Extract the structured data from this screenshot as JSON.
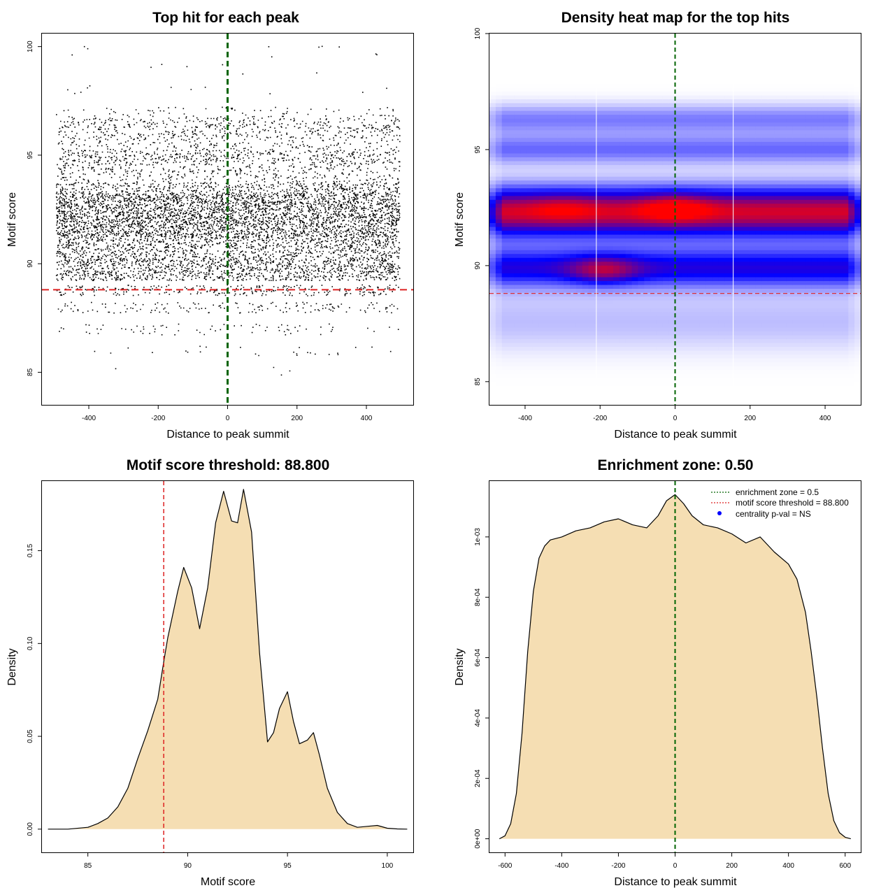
{
  "chart_data": [
    {
      "type": "scatter",
      "title": "Top hit for each peak",
      "xlabel": "Distance to peak summit",
      "ylabel": "Motif score",
      "xlim": [
        -535,
        535
      ],
      "ylim": [
        83.5,
        100.6
      ],
      "xticks": [
        -400,
        -200,
        0,
        200,
        400
      ],
      "xtick_labels": [
        "-400",
        "-200",
        "0",
        "200",
        "400"
      ],
      "yticks": [
        85,
        90,
        95,
        100
      ],
      "ytick_labels": [
        "85",
        "90",
        "95",
        "100"
      ],
      "hlines": [
        {
          "y": 88.8,
          "color": "#dd2222",
          "style": "dashed"
        }
      ],
      "vlines": [
        {
          "x": 0,
          "color": "#006400",
          "style": "dashed"
        }
      ],
      "point_density_by_score": [
        {
          "y": 85.0,
          "count": 4
        },
        {
          "y": 86.0,
          "count": 25
        },
        {
          "y": 87.0,
          "count": 70
        },
        {
          "y": 88.0,
          "count": 150
        },
        {
          "y": 88.8,
          "count": 260
        },
        {
          "y": 89.5,
          "count": 560
        },
        {
          "y": 90.0,
          "count": 620
        },
        {
          "y": 90.5,
          "count": 480
        },
        {
          "y": 91.0,
          "count": 560
        },
        {
          "y": 91.5,
          "count": 820
        },
        {
          "y": 92.0,
          "count": 880
        },
        {
          "y": 92.5,
          "count": 820
        },
        {
          "y": 93.0,
          "count": 860
        },
        {
          "y": 93.5,
          "count": 480
        },
        {
          "y": 94.0,
          "count": 200
        },
        {
          "y": 94.5,
          "count": 260
        },
        {
          "y": 95.0,
          "count": 380
        },
        {
          "y": 95.5,
          "count": 170
        },
        {
          "y": 96.0,
          "count": 240
        },
        {
          "y": 96.5,
          "count": 270
        },
        {
          "y": 97.0,
          "count": 80
        },
        {
          "y": 98.0,
          "count": 12
        },
        {
          "y": 99.0,
          "count": 6
        },
        {
          "y": 99.8,
          "count": 10
        }
      ],
      "x_range_of_points": [
        -495,
        495
      ]
    },
    {
      "type": "heatmap",
      "title": "Density heat map for the top hits",
      "xlabel": "Distance to peak summit",
      "ylabel": "Motif score",
      "xlim": [
        -495,
        495
      ],
      "ylim": [
        84,
        100
      ],
      "xticks": [
        -400,
        -200,
        0,
        200,
        400
      ],
      "xtick_labels": [
        "-400",
        "-200",
        "0",
        "200",
        "400"
      ],
      "yticks": [
        85,
        90,
        95,
        100
      ],
      "ytick_labels": [
        "85",
        "90",
        "95",
        "100"
      ],
      "colors": [
        "#ffffff",
        "#0000ff",
        "#ff0000"
      ],
      "hlines": [
        {
          "y": 88.8,
          "color": "#dd2222",
          "style": "dashed"
        }
      ],
      "vlines": [
        {
          "x": 0,
          "color": "#006400",
          "style": "dashed"
        },
        {
          "x": -210,
          "color": "#ffffff",
          "style": "solid"
        },
        {
          "x": 155,
          "color": "#ffffff",
          "style": "solid"
        }
      ],
      "bands": [
        {
          "y": 92.3,
          "sigma": 0.75,
          "weight": 1.0
        },
        {
          "y": 89.9,
          "sigma": 0.6,
          "weight": 0.6
        },
        {
          "y": 95.0,
          "sigma": 0.45,
          "weight": 0.32
        },
        {
          "y": 96.3,
          "sigma": 0.45,
          "weight": 0.28
        },
        {
          "y": 87.6,
          "sigma": 0.9,
          "weight": 0.14
        }
      ],
      "hotspots": [
        {
          "x": 0,
          "y": 92.5,
          "weight": 0.25
        },
        {
          "x": -190,
          "y": 89.8,
          "weight": 0.35
        },
        {
          "x": -300,
          "y": 92.5,
          "weight": 0.12
        }
      ]
    },
    {
      "type": "area",
      "title": "Motif score threshold: 88.800",
      "xlabel": "Motif score",
      "ylabel": "Density",
      "xlim": [
        82.7,
        101.3
      ],
      "ylim": [
        -0.0125,
        0.1875
      ],
      "xticks": [
        85,
        90,
        95,
        100
      ],
      "xtick_labels": [
        "85",
        "90",
        "95",
        "100"
      ],
      "yticks": [
        0,
        0.05,
        0.1,
        0.15
      ],
      "ytick_labels": [
        "0.00",
        "0.05",
        "0.10",
        "0.15"
      ],
      "fill": "#f5deb3",
      "vlines": [
        {
          "x": 88.8,
          "color": "#dd2222",
          "style": "dashed"
        }
      ],
      "x": [
        83,
        84,
        85,
        85.5,
        86,
        86.5,
        87,
        87.5,
        88,
        88.5,
        88.8,
        89,
        89.5,
        89.8,
        90.2,
        90.6,
        91,
        91.4,
        91.8,
        92.2,
        92.5,
        92.8,
        93.2,
        93.6,
        94,
        94.3,
        94.6,
        95,
        95.3,
        95.6,
        96,
        96.3,
        96.6,
        97,
        97.5,
        98,
        98.5,
        99,
        99.5,
        100,
        100.5,
        101
      ],
      "y": [
        0,
        0,
        0.001,
        0.003,
        0.006,
        0.012,
        0.022,
        0.038,
        0.053,
        0.07,
        0.09,
        0.103,
        0.128,
        0.141,
        0.13,
        0.108,
        0.13,
        0.165,
        0.182,
        0.166,
        0.165,
        0.183,
        0.16,
        0.095,
        0.047,
        0.052,
        0.065,
        0.074,
        0.058,
        0.046,
        0.048,
        0.052,
        0.04,
        0.022,
        0.009,
        0.003,
        0.001,
        0.0015,
        0.002,
        0.0005,
        0.0001,
        0
      ]
    },
    {
      "type": "area",
      "title": "Enrichment zone: 0.50",
      "xlabel": "Distance to peak summit",
      "ylabel": "Density",
      "xlim": [
        -655,
        655
      ],
      "ylim": [
        -4.5e-05,
        0.001185
      ],
      "xticks": [
        -600,
        -400,
        -200,
        0,
        200,
        400,
        600
      ],
      "xtick_labels": [
        "-600",
        "-400",
        "-200",
        "0",
        "200",
        "400",
        "600"
      ],
      "yticks": [
        0,
        0.0002,
        0.0004,
        0.0006,
        0.0008,
        0.001
      ],
      "ytick_labels": [
        "0e+00",
        "2e-04",
        "4e-04",
        "6e-04",
        "8e-04",
        "1e-03"
      ],
      "fill": "#f5deb3",
      "vlines": [
        {
          "x": 0,
          "color": "#006400",
          "style": "dashed"
        }
      ],
      "legend_position": "top-right",
      "legend": [
        {
          "label": "enrichment zone = 0.5",
          "color": "#006400",
          "marker": "dotted-line"
        },
        {
          "label": "motif score threshold = 88.800",
          "color": "#dd2222",
          "marker": "dotted-line"
        },
        {
          "label": "centrality p-val = NS",
          "color": "#0000ff",
          "marker": "dot"
        }
      ],
      "x": [
        -620,
        -600,
        -580,
        -560,
        -540,
        -520,
        -500,
        -480,
        -460,
        -440,
        -400,
        -350,
        -300,
        -250,
        -200,
        -150,
        -100,
        -60,
        -30,
        0,
        30,
        60,
        100,
        150,
        200,
        250,
        300,
        350,
        400,
        430,
        460,
        480,
        500,
        520,
        540,
        560,
        580,
        600,
        620
      ],
      "y": [
        0,
        1e-05,
        5e-05,
        0.00015,
        0.00035,
        0.00062,
        0.00082,
        0.00093,
        0.00097,
        0.00099,
        0.001,
        0.00102,
        0.00103,
        0.00105,
        0.00106,
        0.00104,
        0.00103,
        0.00107,
        0.00112,
        0.00114,
        0.00111,
        0.00107,
        0.00104,
        0.00103,
        0.00101,
        0.00098,
        0.001,
        0.00095,
        0.00091,
        0.00086,
        0.00075,
        0.00062,
        0.00047,
        0.0003,
        0.00015,
        6e-05,
        2e-05,
        5e-06,
        0
      ]
    }
  ]
}
